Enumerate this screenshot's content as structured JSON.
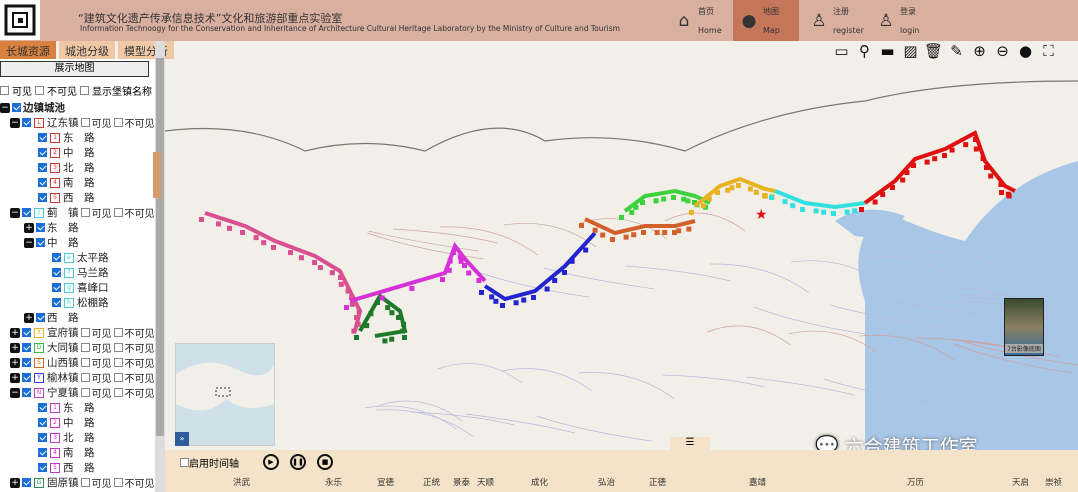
{
  "header": {
    "title_cn": "“建筑文化遗产传承信息技术”文化和旅游部重点实验室",
    "title_en": "Information Technoogy for the Conservation and Inheritance of Architecture Cultural Heritage Laboratory by the Ministry of Culture and Tourism",
    "nav": [
      {
        "cn": "首页",
        "en": "Home",
        "icon": "home-icon"
      },
      {
        "cn": "地图",
        "en": "Map",
        "icon": "globe-icon",
        "active": true
      },
      {
        "cn": "注册",
        "en": "register",
        "icon": "user-add-icon"
      },
      {
        "cn": "登录",
        "en": "login",
        "icon": "user-icon"
      }
    ]
  },
  "tabs": [
    "长城资源",
    "城池分级",
    "模型分析"
  ],
  "left": {
    "show_map": "展示地图",
    "visible": "可见",
    "invisible": "不可见",
    "show_names": "显示堡镇名称",
    "root": "边镇城池",
    "rows": [
      {
        "label": "辽东镇",
        "badge": "L",
        "color": "#c0392b",
        "level": 1,
        "toggle": "−",
        "vis": true
      },
      {
        "label": "东　路",
        "badge": "1",
        "color": "#c0392b",
        "level": 2
      },
      {
        "label": "中　路",
        "badge": "2",
        "color": "#c0392b",
        "level": 2
      },
      {
        "label": "北　路",
        "badge": "3",
        "color": "#c0392b",
        "level": 2
      },
      {
        "label": "南　路",
        "badge": "4",
        "color": "#c0392b",
        "level": 2
      },
      {
        "label": "西　路",
        "badge": "5",
        "color": "#c0392b",
        "level": 2
      },
      {
        "label": "蓟　镇",
        "badge": "J",
        "color": "#4cc9d6",
        "level": 1,
        "toggle": "−",
        "vis": true
      },
      {
        "label": "东　路",
        "level": 2,
        "toggle": "+"
      },
      {
        "label": "中　路",
        "level": 2,
        "toggle": "−"
      },
      {
        "label": "太平路",
        "badge": "e",
        "color": "#4cc9d6",
        "level": 3
      },
      {
        "label": "马兰路",
        "badge": "f",
        "color": "#4cc9d6",
        "level": 3
      },
      {
        "label": "喜峰口",
        "badge": "g",
        "color": "#4cc9d6",
        "level": 3
      },
      {
        "label": "松棚路",
        "badge": "h",
        "color": "#4cc9d6",
        "level": 3
      },
      {
        "label": "西　路",
        "level": 2,
        "toggle": "+"
      },
      {
        "label": "宣府镇",
        "badge": "X",
        "color": "#e6b422",
        "level": 1,
        "toggle": "+",
        "vis": true
      },
      {
        "label": "大同镇",
        "badge": "D",
        "color": "#3cb84a",
        "level": 1,
        "toggle": "+",
        "vis": true
      },
      {
        "label": "山西镇",
        "badge": "S",
        "color": "#d2691e",
        "level": 1,
        "toggle": "+",
        "vis": true
      },
      {
        "label": "榆林镇",
        "badge": "Y",
        "color": "#3a3ad0",
        "level": 1,
        "toggle": "+",
        "vis": true
      },
      {
        "label": "宁夏镇",
        "badge": "N",
        "color": "#c03ac0",
        "level": 1,
        "toggle": "−",
        "vis": true
      },
      {
        "label": "东　路",
        "badge": "1",
        "color": "#c03ac0",
        "level": 2
      },
      {
        "label": "中　路",
        "badge": "2",
        "color": "#c03ac0",
        "level": 2
      },
      {
        "label": "北　路",
        "badge": "3",
        "color": "#c03ac0",
        "level": 2
      },
      {
        "label": "南　路",
        "badge": "4",
        "color": "#c03ac0",
        "level": 2
      },
      {
        "label": "西　路",
        "badge": "5",
        "color": "#c03ac0",
        "level": 2
      },
      {
        "label": "固原镇",
        "badge": "G",
        "color": "#2e8b57",
        "level": 1,
        "toggle": "+",
        "vis": true
      }
    ]
  },
  "toolbar": [
    "comment-icon",
    "search-icon",
    "measure-icon",
    "draw-area-icon",
    "delete-icon",
    "pin-icon",
    "zoom-in-icon",
    "zoom-out-icon",
    "globe-icon",
    "fullscreen-icon"
  ],
  "map": {
    "base_layer_label": "7台影像底图",
    "segment_colors": [
      "#d94f8f",
      "#1e7a2a",
      "#d631d6",
      "#2323d0",
      "#d2602a",
      "#3cd23c",
      "#e6b422",
      "#33e0e0",
      "#e01010"
    ],
    "capital_marker": "★"
  },
  "timeline": {
    "enable": "启用时间轴",
    "handle": "☰",
    "eras": [
      "洪武",
      "永乐",
      "宣德",
      "正统",
      "景泰",
      "天顺",
      "成化",
      "弘治",
      "正德",
      "嘉靖",
      "万历",
      "天启",
      "崇祯"
    ]
  },
  "watermark": "六合建筑工作室"
}
